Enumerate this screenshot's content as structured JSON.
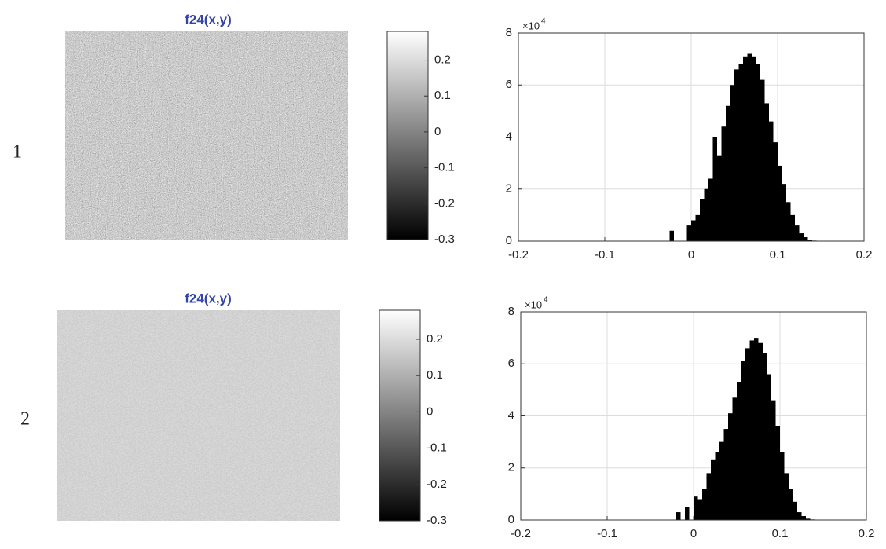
{
  "rows": [
    {
      "label": "1",
      "image": {
        "title": "f24(x,y)"
      },
      "colorbar": {
        "lim": [
          -0.3,
          0.28
        ],
        "ticks": [
          0.2,
          0.1,
          0,
          -0.1,
          -0.2,
          -0.3
        ]
      }
    },
    {
      "label": "2",
      "image": {
        "title": "f24(x,y)"
      },
      "colorbar": {
        "lim": [
          -0.3,
          0.28
        ],
        "ticks": [
          0.2,
          0.1,
          0,
          -0.1,
          -0.2,
          -0.3
        ]
      }
    }
  ],
  "chart_data": [
    {
      "type": "histogram",
      "color": "#000000",
      "grid": true,
      "y_multiplier": {
        "base": "×10",
        "power": "4"
      },
      "bins": [
        -0.03,
        -0.025,
        -0.02,
        -0.015,
        -0.01,
        -0.005,
        0,
        0.005,
        0.01,
        0.015,
        0.02,
        0.025,
        0.03,
        0.035,
        0.04,
        0.045,
        0.05,
        0.055,
        0.06,
        0.065,
        0.07,
        0.075,
        0.08,
        0.085,
        0.09,
        0.095,
        0.1,
        0.105,
        0.11,
        0.115,
        0.12,
        0.125,
        0.13,
        0.135,
        0.14,
        0.145,
        0.15
      ],
      "values": [
        0,
        0.4,
        0,
        0,
        0,
        0.6,
        0.8,
        1.0,
        1.6,
        2.0,
        2.4,
        4.0,
        3.3,
        4.4,
        5.2,
        6.0,
        6.6,
        6.8,
        7.1,
        7.2,
        7.1,
        6.8,
        6.2,
        5.3,
        4.6,
        3.8,
        2.9,
        2.2,
        1.5,
        1.0,
        0.6,
        0.3,
        0.15,
        0.05,
        0.02,
        0
      ],
      "xlim": [
        -0.2,
        0.2
      ],
      "xticks": [
        -0.2,
        -0.1,
        0,
        0.1,
        0.2
      ],
      "ylim": [
        0,
        8
      ],
      "yticks": [
        0,
        2,
        4,
        6,
        8
      ]
    },
    {
      "type": "histogram",
      "color": "#000000",
      "grid": true,
      "y_multiplier": {
        "base": "×10",
        "power": "4"
      },
      "bins": [
        -0.03,
        -0.025,
        -0.02,
        -0.015,
        -0.01,
        -0.005,
        0,
        0.005,
        0.01,
        0.015,
        0.02,
        0.025,
        0.03,
        0.035,
        0.04,
        0.045,
        0.05,
        0.055,
        0.06,
        0.065,
        0.07,
        0.075,
        0.08,
        0.085,
        0.09,
        0.095,
        0.1,
        0.105,
        0.11,
        0.115,
        0.12,
        0.125,
        0.13,
        0.135,
        0.14,
        0.145,
        0.15
      ],
      "values": [
        0,
        0,
        0.3,
        0,
        0.5,
        0,
        0.9,
        0.8,
        1.2,
        1.8,
        2.3,
        2.6,
        3.0,
        3.5,
        4.1,
        4.7,
        5.3,
        6.1,
        6.6,
        6.9,
        7.0,
        6.8,
        6.4,
        5.6,
        4.6,
        3.6,
        2.6,
        1.8,
        1.2,
        0.7,
        0.3,
        0.15,
        0.05,
        0.02,
        0.01,
        0
      ],
      "xlim": [
        -0.2,
        0.2
      ],
      "xticks": [
        -0.2,
        -0.1,
        0,
        0.1,
        0.2
      ],
      "ylim": [
        0,
        8
      ],
      "yticks": [
        0,
        2,
        4,
        6,
        8
      ]
    }
  ]
}
